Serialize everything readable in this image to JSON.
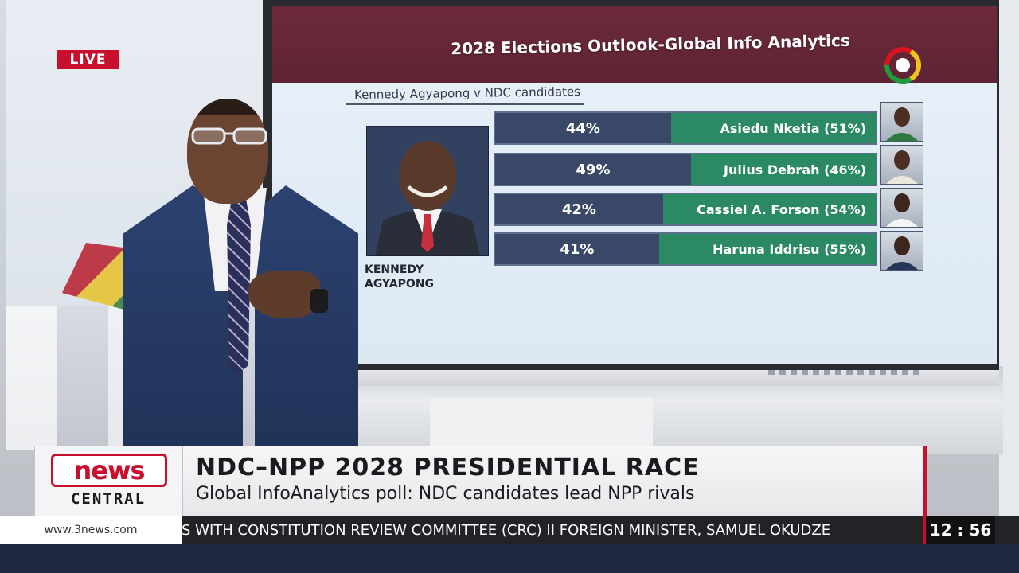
{
  "live_badge": "LIVE",
  "screen": {
    "title": "2028 Elections Outlook-Global Info Analytics",
    "subtitle": "Kennedy Agyapong v NDC candidates",
    "portrait_name_line1": "KENNEDY",
    "portrait_name_line2": "AGYAPONG",
    "rows": [
      {
        "pct": "44%",
        "opponent": "Asiedu Nketia (51%)",
        "share": 44
      },
      {
        "pct": "49%",
        "opponent": "Julius Debrah (46%)",
        "share": 49
      },
      {
        "pct": "42%",
        "opponent": "Cassiel A. Forson (54%)",
        "share": 42
      },
      {
        "pct": "41%",
        "opponent": "Haruna Iddrisu (55%)",
        "share": 41
      }
    ]
  },
  "lower_third": {
    "brand_top": "news",
    "brand_bottom": "CENTRAL",
    "headline": "NDC–NPP 2028 PRESIDENTIAL RACE",
    "subheadline": "Global InfoAnalytics poll: NDC candidates lead NPP rivals"
  },
  "ticker": {
    "url": "www.3news.com",
    "text": "S WITH CONSTITUTION REVIEW COMMITTEE (CRC)   II   FOREIGN MINISTER, SAMUEL OKUDZE",
    "clock": "12 : 56"
  },
  "colors": {
    "header": "#6d2a3a",
    "bar_blue": "#3a4868",
    "bar_green": "#2b8a63",
    "brand_red": "#c8102e"
  }
}
